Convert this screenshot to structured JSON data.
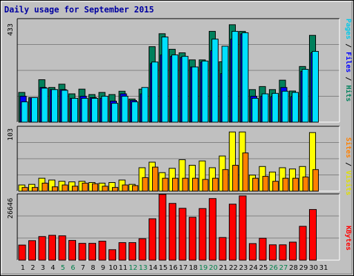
{
  "title": "Daily usage for September 2015",
  "colors": {
    "hits": "#00805c",
    "files": "#0000ff",
    "pages": "#00e0ff",
    "visits": "#ffff00",
    "sites": "#ff8000",
    "kbytes": "#ff0000",
    "weekend_label": "#00804b"
  },
  "chart_data": [
    {
      "type": "bar",
      "panel": "hits-files-pages",
      "ymax_label": "433",
      "ylim": [
        0,
        433
      ],
      "categories": [
        "1",
        "2",
        "3",
        "4",
        "5",
        "6",
        "7",
        "8",
        "9",
        "10",
        "11",
        "12",
        "13",
        "14",
        "15",
        "16",
        "17",
        "18",
        "19",
        "20",
        "21",
        "22",
        "23",
        "24",
        "25",
        "26",
        "27",
        "28",
        "29",
        "30",
        "31"
      ],
      "weekend_days": [
        "5",
        "6",
        "12",
        "13",
        "19",
        "20",
        "26",
        "27"
      ],
      "legend": {
        "pages": "Pages",
        "files": "Files",
        "hits": "Hits",
        "sep": " / "
      },
      "series": [
        {
          "name": "Hits",
          "values": [
            126,
            104,
            180,
            147,
            161,
            120,
            140,
            117,
            126,
            117,
            131,
            98,
            140,
            320,
            375,
            309,
            294,
            264,
            264,
            385,
            256,
            413,
            385,
            138,
            151,
            138,
            178,
            132,
            236,
            368,
            0
          ]
        },
        {
          "name": "Files",
          "values": [
            110,
            104,
            147,
            138,
            138,
            101,
            110,
            104,
            101,
            89,
            120,
            92,
            120,
            249,
            285,
            279,
            274,
            234,
            255,
            303,
            206,
            352,
            374,
            110,
            110,
            108,
            147,
            108,
            215,
            294,
            0
          ]
        },
        {
          "name": "Pages",
          "values": [
            86,
            104,
            144,
            138,
            135,
            101,
            101,
            101,
            110,
            80,
            110,
            86,
            147,
            255,
            361,
            285,
            279,
            234,
            259,
            352,
            322,
            385,
            379,
            101,
            120,
            122,
            131,
            126,
            224,
            300,
            0
          ]
        }
      ]
    },
    {
      "type": "bar",
      "panel": "visits-sites",
      "ymax_label": "103",
      "ylim": [
        0,
        103
      ],
      "legend": {
        "sites": "Sites",
        "visits": "Visits",
        "sep": " / "
      },
      "series": [
        {
          "name": "Visits",
          "values": [
            10,
            11,
            21,
            18,
            16,
            15,
            16,
            14,
            13,
            14,
            18,
            11,
            38,
            47,
            30,
            37,
            51,
            42,
            49,
            38,
            57,
            96,
            96,
            26,
            40,
            31,
            38,
            36,
            40,
            95,
            0
          ]
        },
        {
          "name": "Sites",
          "values": [
            6,
            6,
            13,
            7,
            10,
            8,
            13,
            12,
            8,
            6,
            10,
            9,
            22,
            39,
            21,
            21,
            21,
            21,
            19,
            21,
            35,
            42,
            62,
            21,
            24,
            16,
            21,
            21,
            23,
            35,
            0
          ]
        }
      ]
    },
    {
      "type": "bar",
      "panel": "kbytes",
      "ymax_label": "26646",
      "ylim": [
        0,
        26646
      ],
      "legend": {
        "kbytes": "KBytes"
      },
      "series": [
        {
          "name": "KBytes",
          "values": [
            6200,
            8000,
            9700,
            10200,
            10000,
            8100,
            6900,
            6900,
            7800,
            4300,
            7200,
            7200,
            8800,
            17000,
            27000,
            23300,
            21300,
            17600,
            21200,
            25300,
            9300,
            23000,
            26400,
            6800,
            9000,
            6300,
            6300,
            7400,
            13900,
            20800,
            0
          ]
        }
      ]
    }
  ]
}
